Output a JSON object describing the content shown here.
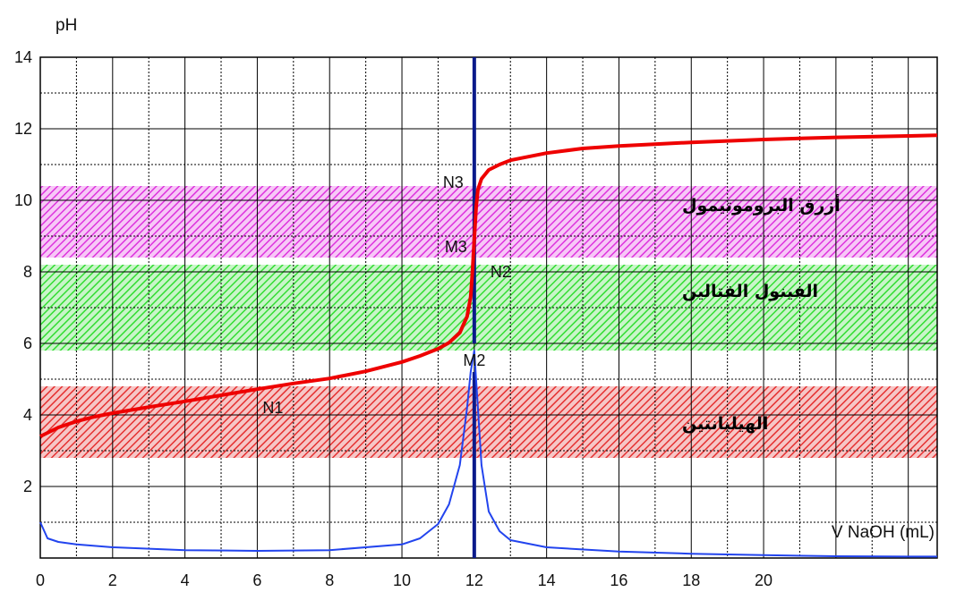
{
  "chart_data": {
    "type": "line",
    "ylabel": "pH",
    "xlabel": "V NaOH (mL)",
    "xlim": [
      0,
      24.8
    ],
    "ylim": [
      0,
      14
    ],
    "x_ticks": [
      0,
      2,
      4,
      6,
      8,
      10,
      12,
      14,
      16,
      18,
      20
    ],
    "y_ticks": [
      2,
      4,
      6,
      8,
      10,
      12,
      14
    ],
    "grid": true,
    "equivalence_volume": 12,
    "indicator_bands": [
      {
        "label": "أزرق البروموتيمول",
        "from": 8.4,
        "to": 10.4,
        "color": "#dd33dd"
      },
      {
        "label": "الفينول الفتالين",
        "from": 5.8,
        "to": 8.2,
        "color": "#33dd33"
      },
      {
        "label": "الهيليانتين",
        "from": 2.8,
        "to": 4.8,
        "color": "#e53030"
      }
    ],
    "annotations": [
      {
        "label": "N1",
        "x": 6,
        "y": 4.4
      },
      {
        "label": "N2",
        "x": 12,
        "y": 8
      },
      {
        "label": "N3",
        "x": 12,
        "y": 10.4
      },
      {
        "label": "M2",
        "x": 12,
        "y": 5.8
      },
      {
        "label": "M3",
        "x": 12,
        "y": 8.5
      }
    ],
    "series": [
      {
        "color": "#ee0000",
        "x": [
          0,
          0.5,
          1,
          1.5,
          2,
          3,
          4,
          5,
          6,
          7,
          8,
          9,
          10,
          10.5,
          11,
          11.3,
          11.6,
          11.8,
          11.9,
          11.95,
          12,
          12.05,
          12.1,
          12.2,
          12.4,
          12.7,
          13,
          14,
          15,
          16,
          18,
          20,
          22,
          24,
          24.8
        ],
        "y": [
          3.4,
          3.65,
          3.82,
          3.95,
          4.05,
          4.22,
          4.38,
          4.55,
          4.72,
          4.88,
          5.02,
          5.22,
          5.48,
          5.65,
          5.85,
          6.02,
          6.3,
          6.75,
          7.3,
          8.0,
          8.9,
          9.8,
          10.3,
          10.6,
          10.85,
          11.0,
          11.12,
          11.32,
          11.45,
          11.52,
          11.62,
          11.7,
          11.76,
          11.8,
          11.82
        ]
      },
      {
        "color": "#2244ee",
        "x": [
          0,
          0.2,
          0.5,
          1,
          2,
          4,
          6,
          8,
          10,
          10.5,
          11,
          11.3,
          11.6,
          11.8,
          11.9,
          12,
          12.1,
          12.2,
          12.4,
          12.7,
          13,
          14,
          16,
          18,
          20,
          22,
          24,
          24.8
        ],
        "y": [
          1.0,
          0.55,
          0.45,
          0.38,
          0.3,
          0.22,
          0.2,
          0.22,
          0.38,
          0.55,
          0.95,
          1.5,
          2.6,
          4.2,
          5.2,
          5.8,
          4.2,
          2.6,
          1.3,
          0.75,
          0.5,
          0.3,
          0.18,
          0.12,
          0.08,
          0.05,
          0.04,
          0.04
        ]
      }
    ]
  }
}
